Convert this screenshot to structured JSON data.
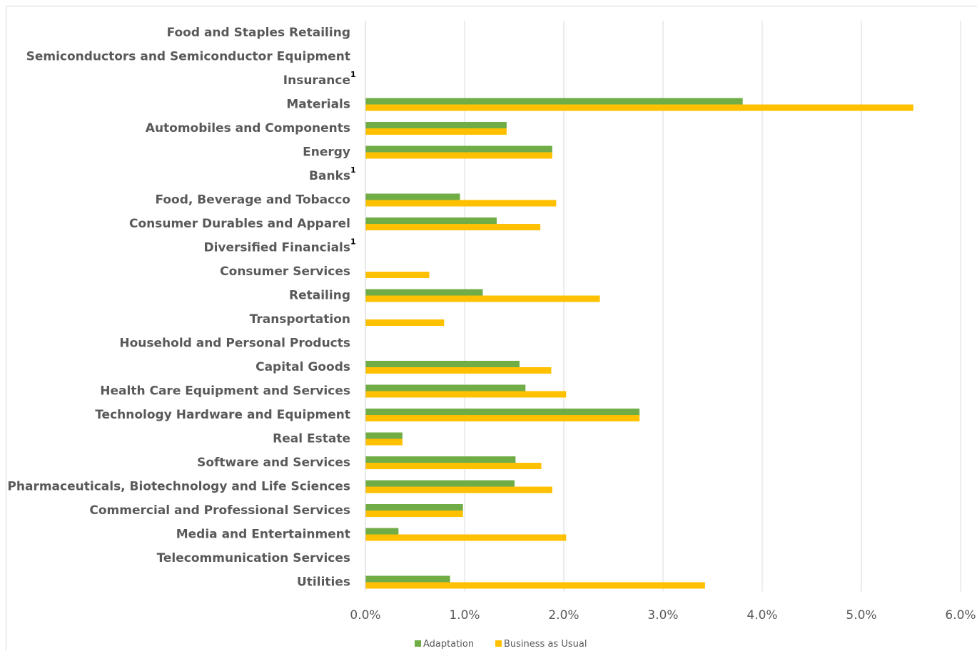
{
  "chart_data": {
    "type": "bar",
    "orientation": "horizontal",
    "categories": [
      "Food and Staples Retailing",
      "Semiconductors and Semiconductor Equipment",
      "Insurance",
      "Materials",
      "Automobiles and Components",
      "Energy",
      "Banks",
      "Food, Beverage and Tobacco",
      "Consumer Durables and Apparel",
      "Diversified Financials",
      "Consumer Services",
      "Retailing",
      "Transportation",
      "Household and Personal Products",
      "Capital Goods",
      "Health Care Equipment and Services",
      "Technology Hardware and Equipment",
      "Real Estate",
      "Software and Services",
      "Pharmaceuticals, Biotechnology and Life Sciences",
      "Commercial and Professional Services",
      "Media and Entertainment",
      "Telecommunication Services",
      "Utilities"
    ],
    "footnotes": [
      "",
      "",
      "1",
      "",
      "",
      "",
      "1",
      "",
      "",
      "1",
      "",
      "",
      "",
      "",
      "",
      "",
      "",
      "",
      "",
      "",
      "",
      "",
      "",
      ""
    ],
    "series": [
      {
        "name": "Adaptation",
        "color": "#70ad47",
        "values": [
          null,
          null,
          null,
          3.8,
          1.42,
          1.88,
          null,
          0.95,
          1.32,
          null,
          null,
          1.18,
          null,
          null,
          1.55,
          1.61,
          2.76,
          0.37,
          1.51,
          1.5,
          0.98,
          0.33,
          null,
          0.85
        ]
      },
      {
        "name": "Business as Usual",
        "color": "#ffc000",
        "values": [
          null,
          null,
          null,
          5.52,
          1.42,
          1.88,
          null,
          1.92,
          1.76,
          null,
          0.64,
          2.36,
          0.79,
          null,
          1.87,
          2.02,
          2.76,
          0.37,
          1.77,
          1.88,
          0.98,
          2.02,
          null,
          3.42
        ]
      }
    ],
    "xlim": [
      0,
      6
    ],
    "xticks": [
      "0.0%",
      "1.0%",
      "2.0%",
      "3.0%",
      "4.0%",
      "5.0%",
      "6.0%"
    ],
    "grid": true,
    "legend_position": "bottom",
    "title": "",
    "xlabel": "",
    "ylabel": ""
  }
}
